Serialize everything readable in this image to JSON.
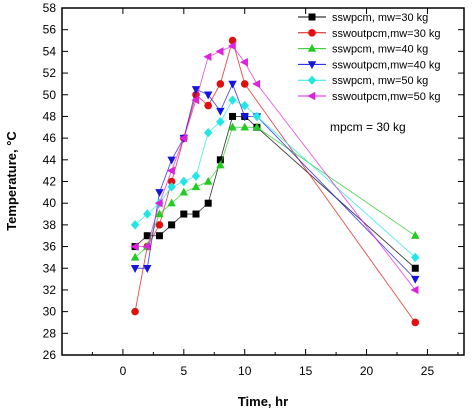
{
  "chart_data": {
    "type": "scatter",
    "xlabel": "Time, hr",
    "ylabel": "Temperature, °C",
    "xlim": [
      -5,
      28
    ],
    "ylim": [
      26,
      58
    ],
    "xticks": [
      0,
      5,
      10,
      15,
      20,
      25
    ],
    "yticks": [
      26,
      28,
      30,
      32,
      34,
      36,
      38,
      40,
      42,
      44,
      46,
      48,
      50,
      52,
      54,
      56,
      58
    ],
    "grid": false,
    "legend_position": "top-right",
    "annotation": "mpcm = 30 kg",
    "series": [
      {
        "name": "sswpcm, mw=30 kg",
        "marker": "square",
        "color": "#000000",
        "x": [
          1,
          2,
          3,
          4,
          5,
          6,
          7,
          8,
          9,
          10,
          11,
          24
        ],
        "y": [
          36,
          37,
          37,
          38,
          39,
          39,
          40,
          44,
          48,
          48,
          47,
          34
        ]
      },
      {
        "name": "sswoutpcm,mw=30 kg",
        "marker": "circle",
        "color": "#e01010",
        "x": [
          1,
          2,
          3,
          4,
          5,
          6,
          7,
          8,
          9,
          10,
          24
        ],
        "y": [
          30,
          36,
          38,
          42,
          46,
          50,
          49,
          51,
          55,
          51,
          29
        ]
      },
      {
        "name": "sswpcm, mw=40 kg",
        "marker": "triangle-up",
        "color": "#22cc22",
        "x": [
          1,
          2,
          3,
          4,
          5,
          6,
          7,
          8,
          9,
          10,
          11,
          24
        ],
        "y": [
          35,
          36,
          39,
          40,
          41,
          41.5,
          42,
          43.5,
          47,
          47,
          47,
          37
        ]
      },
      {
        "name": "sswoutpcm,mw=40 kg",
        "marker": "triangle-down",
        "color": "#1515e0",
        "x": [
          1,
          2,
          3,
          4,
          5,
          6,
          7,
          8,
          9,
          10,
          11,
          24
        ],
        "y": [
          34,
          34,
          41,
          44,
          46,
          50.5,
          50,
          48.5,
          51,
          48,
          48,
          33
        ]
      },
      {
        "name": "sswpcm, mw=50 kg",
        "marker": "diamond",
        "color": "#22e5e5",
        "x": [
          1,
          2,
          3,
          4,
          5,
          6,
          7,
          8,
          9,
          10,
          11,
          24
        ],
        "y": [
          38,
          39,
          40,
          41.5,
          42,
          42.5,
          46.5,
          47.5,
          49.5,
          49,
          48,
          35
        ]
      },
      {
        "name": "sswoutpcm,mw=50 kg",
        "marker": "triangle-left",
        "color": "#dd22dd",
        "x": [
          1,
          2,
          3,
          4,
          5,
          6,
          7,
          8,
          9,
          10,
          11,
          24
        ],
        "y": [
          36,
          36,
          40,
          43,
          46,
          49.5,
          53.5,
          54,
          54.5,
          53,
          51,
          32
        ]
      }
    ]
  }
}
